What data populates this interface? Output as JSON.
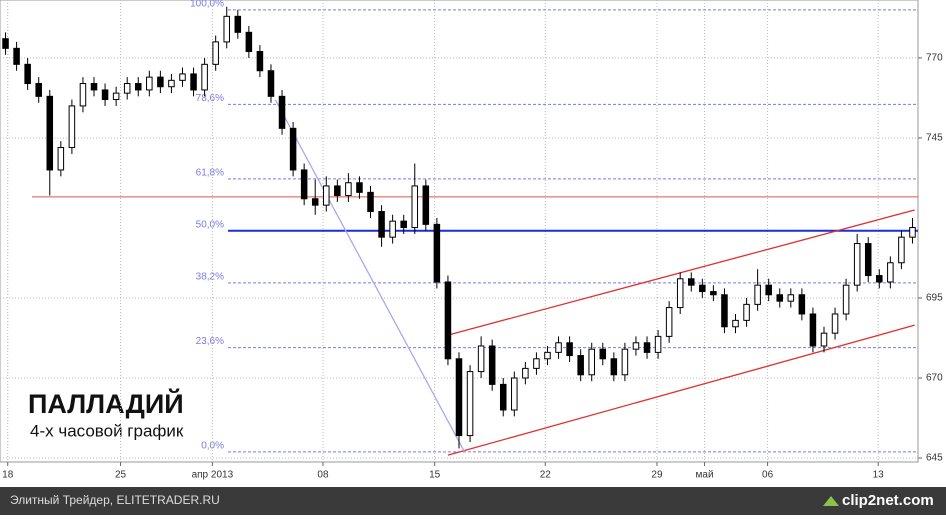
{
  "chart_data": {
    "type": "candlestick",
    "title": "ПАЛЛАДИЙ",
    "subtitle": "4-х часовой график",
    "open": [
      776,
      773,
      768,
      762,
      758,
      735,
      742,
      755,
      762,
      760,
      757,
      759,
      762,
      760,
      764,
      761,
      763,
      765,
      760,
      768,
      775,
      783,
      778,
      772,
      766,
      758,
      748,
      735,
      726,
      724,
      730,
      727,
      731,
      728,
      722,
      714,
      719,
      717,
      730,
      718,
      700,
      676,
      652,
      672,
      680,
      668,
      660,
      670,
      673,
      676,
      678,
      681,
      677,
      671,
      679,
      676,
      671,
      679,
      681,
      678,
      683,
      692,
      701,
      699,
      697,
      696,
      686,
      688,
      693,
      699,
      696,
      694,
      696,
      690,
      680,
      684,
      690,
      699,
      712,
      702,
      700,
      706,
      714
    ],
    "high": [
      778,
      775,
      770,
      764,
      760,
      744,
      757,
      764,
      764,
      762,
      761,
      764,
      764,
      766,
      766,
      765,
      767,
      767,
      770,
      777,
      786,
      785,
      780,
      774,
      768,
      760,
      750,
      737,
      732,
      733,
      732,
      734,
      733,
      730,
      724,
      721,
      721,
      737,
      732,
      720,
      702,
      678,
      674,
      683,
      682,
      670,
      672,
      675,
      678,
      680,
      683,
      683,
      679,
      681,
      681,
      678,
      681,
      683,
      683,
      685,
      694,
      703,
      703,
      701,
      699,
      698,
      690,
      695,
      704,
      701,
      698,
      698,
      698,
      692,
      686,
      692,
      701,
      715,
      714,
      704,
      708,
      716,
      720
    ],
    "low": [
      771,
      766,
      760,
      756,
      727,
      733,
      740,
      753,
      758,
      755,
      755,
      757,
      758,
      758,
      759,
      759,
      761,
      758,
      758,
      766,
      773,
      776,
      770,
      764,
      756,
      746,
      733,
      724,
      721,
      722,
      725,
      725,
      726,
      720,
      711,
      712,
      715,
      715,
      716,
      698,
      674,
      648,
      650,
      670,
      666,
      658,
      658,
      668,
      671,
      674,
      676,
      675,
      669,
      669,
      674,
      669,
      669,
      677,
      676,
      676,
      681,
      690,
      697,
      695,
      694,
      684,
      684,
      686,
      691,
      694,
      692,
      692,
      688,
      678,
      678,
      682,
      688,
      697,
      700,
      698,
      698,
      704,
      712
    ],
    "close": [
      773,
      768,
      762,
      758,
      735,
      742,
      755,
      762,
      760,
      757,
      759,
      762,
      760,
      764,
      761,
      763,
      765,
      760,
      768,
      775,
      783,
      778,
      772,
      766,
      758,
      748,
      735,
      726,
      724,
      730,
      727,
      731,
      728,
      722,
      714,
      719,
      717,
      730,
      718,
      700,
      676,
      652,
      672,
      680,
      668,
      660,
      670,
      673,
      676,
      678,
      681,
      677,
      671,
      679,
      676,
      671,
      679,
      681,
      678,
      683,
      692,
      701,
      699,
      697,
      696,
      686,
      688,
      693,
      699,
      696,
      694,
      696,
      690,
      680,
      684,
      690,
      699,
      712,
      702,
      700,
      706,
      714,
      717
    ],
    "xlim": [
      -0.5,
      82.5
    ],
    "xticks": [
      {
        "value": 0.2,
        "label": "18"
      },
      {
        "value": 10.4,
        "label": "25"
      },
      {
        "value": 18.7,
        "label": "апр 2013"
      },
      {
        "value": 28.7,
        "label": "08"
      },
      {
        "value": 38.8,
        "label": "15"
      },
      {
        "value": 48.8,
        "label": "22"
      },
      {
        "value": 58.9,
        "label": "29"
      },
      {
        "value": 63.2,
        "label": "май"
      },
      {
        "value": 68.9,
        "label": "06"
      },
      {
        "value": 78.9,
        "label": "13"
      }
    ],
    "ylim": [
      643.75,
      788.1
    ],
    "yticks": [
      645,
      670,
      695,
      745,
      770
    ],
    "grid": true,
    "fib_levels": [
      {
        "label": "100,0%",
        "value": 785
      },
      {
        "label": "78,6%",
        "value": 755.5
      },
      {
        "label": "61,8%",
        "value": 732.2
      },
      {
        "label": "50,0%",
        "value": 716
      },
      {
        "label": "38,2%",
        "value": 699.7
      },
      {
        "label": "23,6%",
        "value": 679.5
      },
      {
        "label": "0,0%",
        "value": 646.9
      }
    ],
    "fib_color": "#7a7ae8",
    "main_level_color": "#1a2fd6",
    "horizontal_lines": [
      {
        "value": 726.6,
        "color": "#e05050"
      }
    ],
    "trend_lines": [
      {
        "points": [
          [
            40.0,
            683.4
          ],
          [
            82.2,
            722.5
          ]
        ],
        "color": "#e03030"
      },
      {
        "points": [
          [
            40.0,
            645.9
          ],
          [
            82.2,
            686.5
          ]
        ],
        "color": "#e03030"
      },
      {
        "points": [
          [
            24.4,
            756.9
          ],
          [
            41.5,
            646.9
          ]
        ],
        "color": "#a8aaf0"
      }
    ]
  },
  "footer": {
    "text": "Элитный Трейдер, ELITETRADER.RU",
    "logo": "clip2net.com"
  }
}
